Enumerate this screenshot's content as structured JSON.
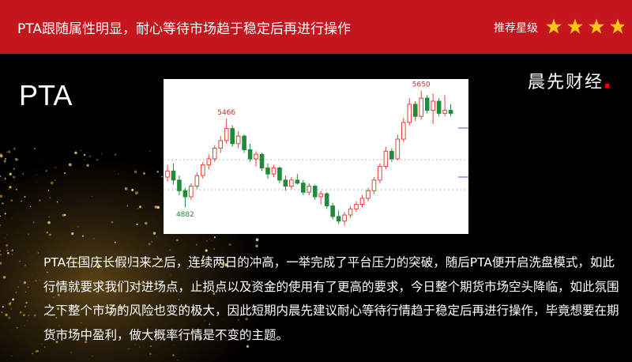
{
  "header": {
    "title": "PTA跟随属性明显，耐心等待市场趋于稳定后再进行操作",
    "rating_label": "推荐星级",
    "rating": 4
  },
  "product": "PTA",
  "brand": "晨先财经",
  "chart_data": {
    "type": "candlestick",
    "ylim": [
      4705,
      5726
    ],
    "up_color": "#e8413b",
    "down_color": "#1f8a3a",
    "open": [
      5080,
      5120,
      5060,
      4990,
      4950,
      5020,
      5090,
      5160,
      5200,
      5270,
      5320,
      5400,
      5300,
      5350,
      5260,
      5200,
      5230,
      5140,
      5100,
      5140,
      5060,
      5020,
      5060,
      5040,
      4980,
      5020,
      4950,
      4970,
      4890,
      4820,
      4790,
      4830,
      4870,
      4900,
      4940,
      4990,
      5060,
      5150,
      5250,
      5200,
      5330,
      5440,
      5560,
      5480,
      5600,
      5520,
      5580,
      5500,
      5520
    ],
    "high": [
      5160,
      5170,
      5090,
      5010,
      5040,
      5110,
      5180,
      5230,
      5290,
      5350,
      5466,
      5420,
      5380,
      5360,
      5300,
      5250,
      5240,
      5170,
      5160,
      5150,
      5090,
      5080,
      5100,
      5060,
      5040,
      5030,
      4990,
      4980,
      4910,
      4860,
      4850,
      4890,
      4920,
      4960,
      5010,
      5080,
      5170,
      5280,
      5270,
      5360,
      5470,
      5600,
      5580,
      5650,
      5620,
      5630,
      5600,
      5620,
      5560
    ],
    "low": [
      5050,
      5030,
      4960,
      4882,
      4930,
      5000,
      5070,
      5130,
      5180,
      5240,
      5300,
      5280,
      5270,
      5240,
      5180,
      5150,
      5120,
      5070,
      5080,
      5040,
      4990,
      5000,
      5030,
      4960,
      4960,
      4930,
      4900,
      4870,
      4800,
      4770,
      4760,
      4810,
      4850,
      4880,
      4920,
      4970,
      5040,
      5130,
      5180,
      5190,
      5310,
      5420,
      5450,
      5460,
      5500,
      5430,
      5480,
      5480,
      5480
    ],
    "close": [
      5120,
      5060,
      4990,
      4950,
      5020,
      5090,
      5160,
      5200,
      5270,
      5320,
      5400,
      5300,
      5350,
      5260,
      5200,
      5230,
      5140,
      5100,
      5140,
      5060,
      5020,
      5060,
      5040,
      4980,
      5020,
      4950,
      4970,
      4890,
      4820,
      4790,
      4830,
      4870,
      4900,
      4940,
      4990,
      5060,
      5150,
      5250,
      5200,
      5330,
      5440,
      5560,
      5480,
      5600,
      5520,
      5580,
      5500,
      5520,
      5500
    ]
  },
  "body": "PTA在国庆长假归来之后，连续两日的冲高，一举完成了平台压力的突破，随后PTA便开启洗盘模式，如此行情就要求我们对进场点，止损点以及资金的使用有了更高的要求，今日整个期货市场空头降临，如此氛围之下整个市场的风险也变的极大，因此短期内晨先建议耐心等待行情趋于稳定后再进行操作，毕竟想要在期货市场中盈利，做大概率行情是不变的主题。"
}
